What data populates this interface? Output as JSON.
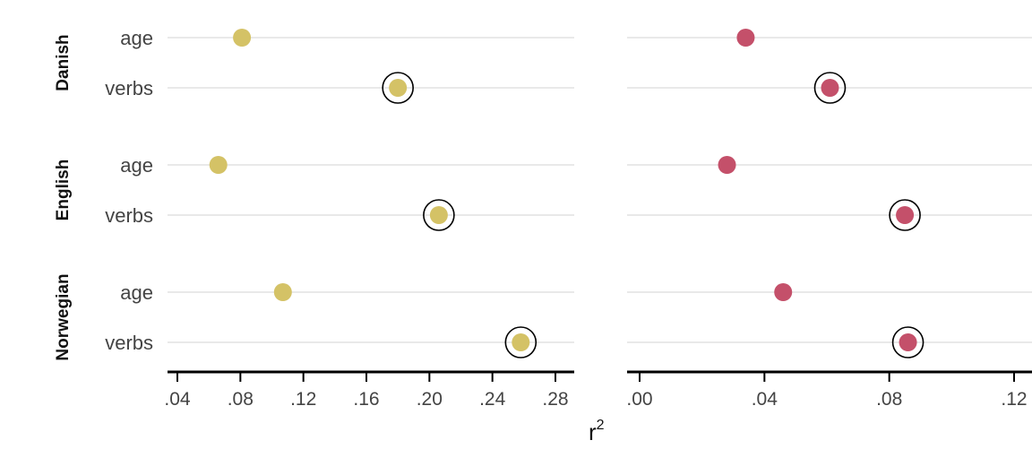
{
  "chart_data": {
    "type": "scatter",
    "xlabel": "r",
    "xlabel_superscript": "2",
    "groups": [
      "Danish",
      "English",
      "Norwegian"
    ],
    "rows": [
      "age",
      "verbs"
    ],
    "grid": "horizontal",
    "highlight": "circle around verbs point",
    "panels": [
      {
        "color": "#d4c266",
        "xlim": [
          0.03,
          0.29
        ],
        "ticks": [
          0.04,
          0.08,
          0.12,
          0.16,
          0.2,
          0.24,
          0.28
        ],
        "tick_labels": [
          ".04",
          ".08",
          ".12",
          ".16",
          ".20",
          ".24",
          ".28"
        ],
        "points": [
          {
            "group": "Danish",
            "row": "age",
            "value": 0.081
          },
          {
            "group": "Danish",
            "row": "verbs",
            "value": 0.18,
            "highlight": true
          },
          {
            "group": "English",
            "row": "age",
            "value": 0.066
          },
          {
            "group": "English",
            "row": "verbs",
            "value": 0.206,
            "highlight": true
          },
          {
            "group": "Norwegian",
            "row": "age",
            "value": 0.107
          },
          {
            "group": "Norwegian",
            "row": "verbs",
            "value": 0.258,
            "highlight": true
          }
        ]
      },
      {
        "color": "#c4506a",
        "xlim": [
          -0.004,
          0.122
        ],
        "ticks": [
          0.0,
          0.04,
          0.08,
          0.12
        ],
        "tick_labels": [
          ".00",
          ".04",
          ".08",
          ".12"
        ],
        "points": [
          {
            "group": "Danish",
            "row": "age",
            "value": 0.034
          },
          {
            "group": "Danish",
            "row": "verbs",
            "value": 0.061,
            "highlight": true
          },
          {
            "group": "English",
            "row": "age",
            "value": 0.028
          },
          {
            "group": "English",
            "row": "verbs",
            "value": 0.085,
            "highlight": true
          },
          {
            "group": "Norwegian",
            "row": "age",
            "value": 0.046
          },
          {
            "group": "Norwegian",
            "row": "verbs",
            "value": 0.086,
            "highlight": true
          }
        ]
      }
    ]
  }
}
